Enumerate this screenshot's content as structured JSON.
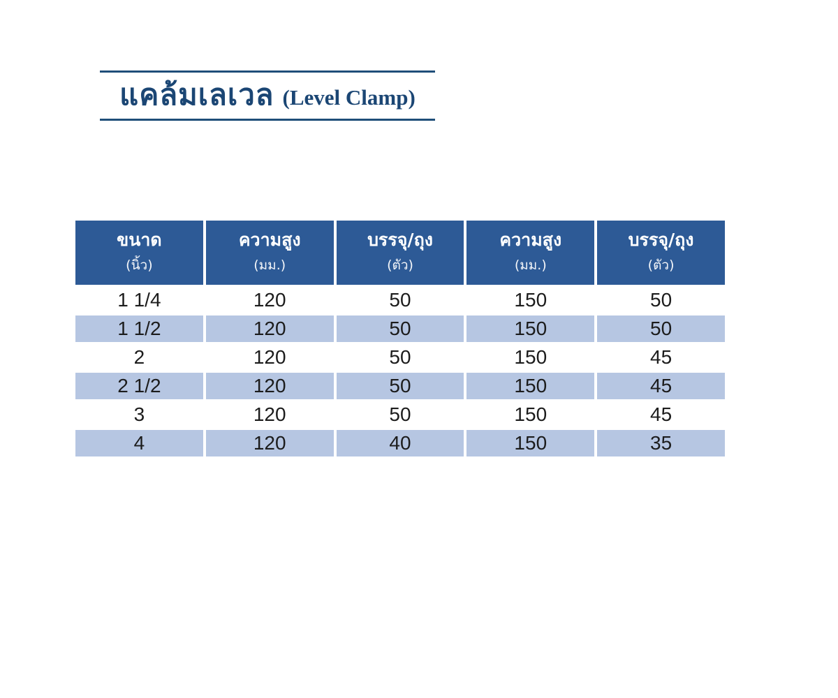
{
  "page": {
    "background": "#ffffff"
  },
  "title": {
    "thai": "แคล้มเลเวล",
    "english": "(Level Clamp)",
    "color": "#1b4674",
    "rule_color": "#1f4e79"
  },
  "table": {
    "header_bg": "#2d5a96",
    "header_text_color": "#ffffff",
    "stripe_bg": "#b6c6e2",
    "columns": [
      {
        "label": "ขนาด",
        "unit": "(นิ้ว)"
      },
      {
        "label": "ความสูง",
        "unit": "(มม.)"
      },
      {
        "label": "บรรจุ/ถุง",
        "unit": "(ตัว)"
      },
      {
        "label": "ความสูง",
        "unit": "(มม.)"
      },
      {
        "label": "บรรจุ/ถุง",
        "unit": "(ตัว)"
      }
    ],
    "rows": [
      [
        "1 1/4",
        "120",
        "50",
        "150",
        "50"
      ],
      [
        "1 1/2",
        "120",
        "50",
        "150",
        "50"
      ],
      [
        "2",
        "120",
        "50",
        "150",
        "45"
      ],
      [
        "2 1/2",
        "120",
        "50",
        "150",
        "45"
      ],
      [
        "3",
        "120",
        "50",
        "150",
        "45"
      ],
      [
        "4",
        "120",
        "40",
        "150",
        "35"
      ]
    ]
  }
}
